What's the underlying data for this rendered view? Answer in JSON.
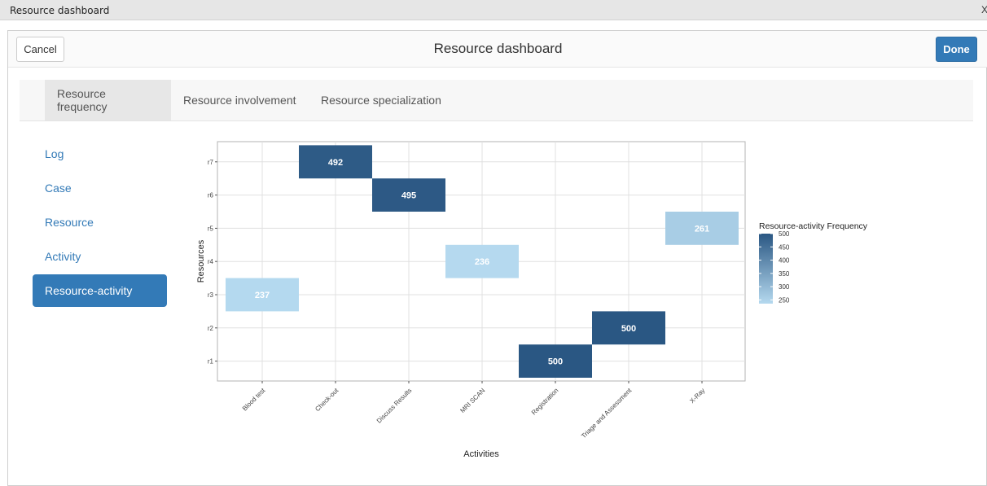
{
  "window": {
    "title": "Resource dashboard",
    "close_glyph": "X"
  },
  "modal": {
    "title": "Resource dashboard",
    "cancel_label": "Cancel",
    "done_label": "Done"
  },
  "tabs": [
    {
      "label": "Resource frequency",
      "active": true
    },
    {
      "label": "Resource involvement",
      "active": false
    },
    {
      "label": "Resource specialization",
      "active": false
    }
  ],
  "sidenav": [
    {
      "label": "Log",
      "active": false
    },
    {
      "label": "Case",
      "active": false
    },
    {
      "label": "Resource",
      "active": false
    },
    {
      "label": "Activity",
      "active": false
    },
    {
      "label": "Resource-activity",
      "active": true
    }
  ],
  "chart_data": {
    "type": "heatmap",
    "xlabel": "Activities",
    "ylabel": "Resources",
    "x_categories": [
      "Blood test",
      "Check-out",
      "Discuss Results",
      "MRI SCAN",
      "Registration",
      "Triage and Assessment",
      "X-Ray"
    ],
    "y_categories": [
      "r1",
      "r2",
      "r3",
      "r4",
      "r5",
      "r6",
      "r7"
    ],
    "cells": [
      {
        "x": "Check-out",
        "y": "r7",
        "value": 492
      },
      {
        "x": "Discuss Results",
        "y": "r6",
        "value": 495
      },
      {
        "x": "X-Ray",
        "y": "r5",
        "value": 261
      },
      {
        "x": "MRI SCAN",
        "y": "r4",
        "value": 236
      },
      {
        "x": "Blood test",
        "y": "r3",
        "value": 237
      },
      {
        "x": "Triage and Assessment",
        "y": "r2",
        "value": 500
      },
      {
        "x": "Registration",
        "y": "r1",
        "value": 500
      }
    ],
    "legend": {
      "title": "Resource-activity Frequency",
      "ticks": [
        500,
        450,
        400,
        350,
        300,
        250
      ],
      "range": [
        236,
        500
      ],
      "position": "right"
    },
    "color_low": "#b5d9ef",
    "color_high": "#2a5783",
    "grid": true
  }
}
